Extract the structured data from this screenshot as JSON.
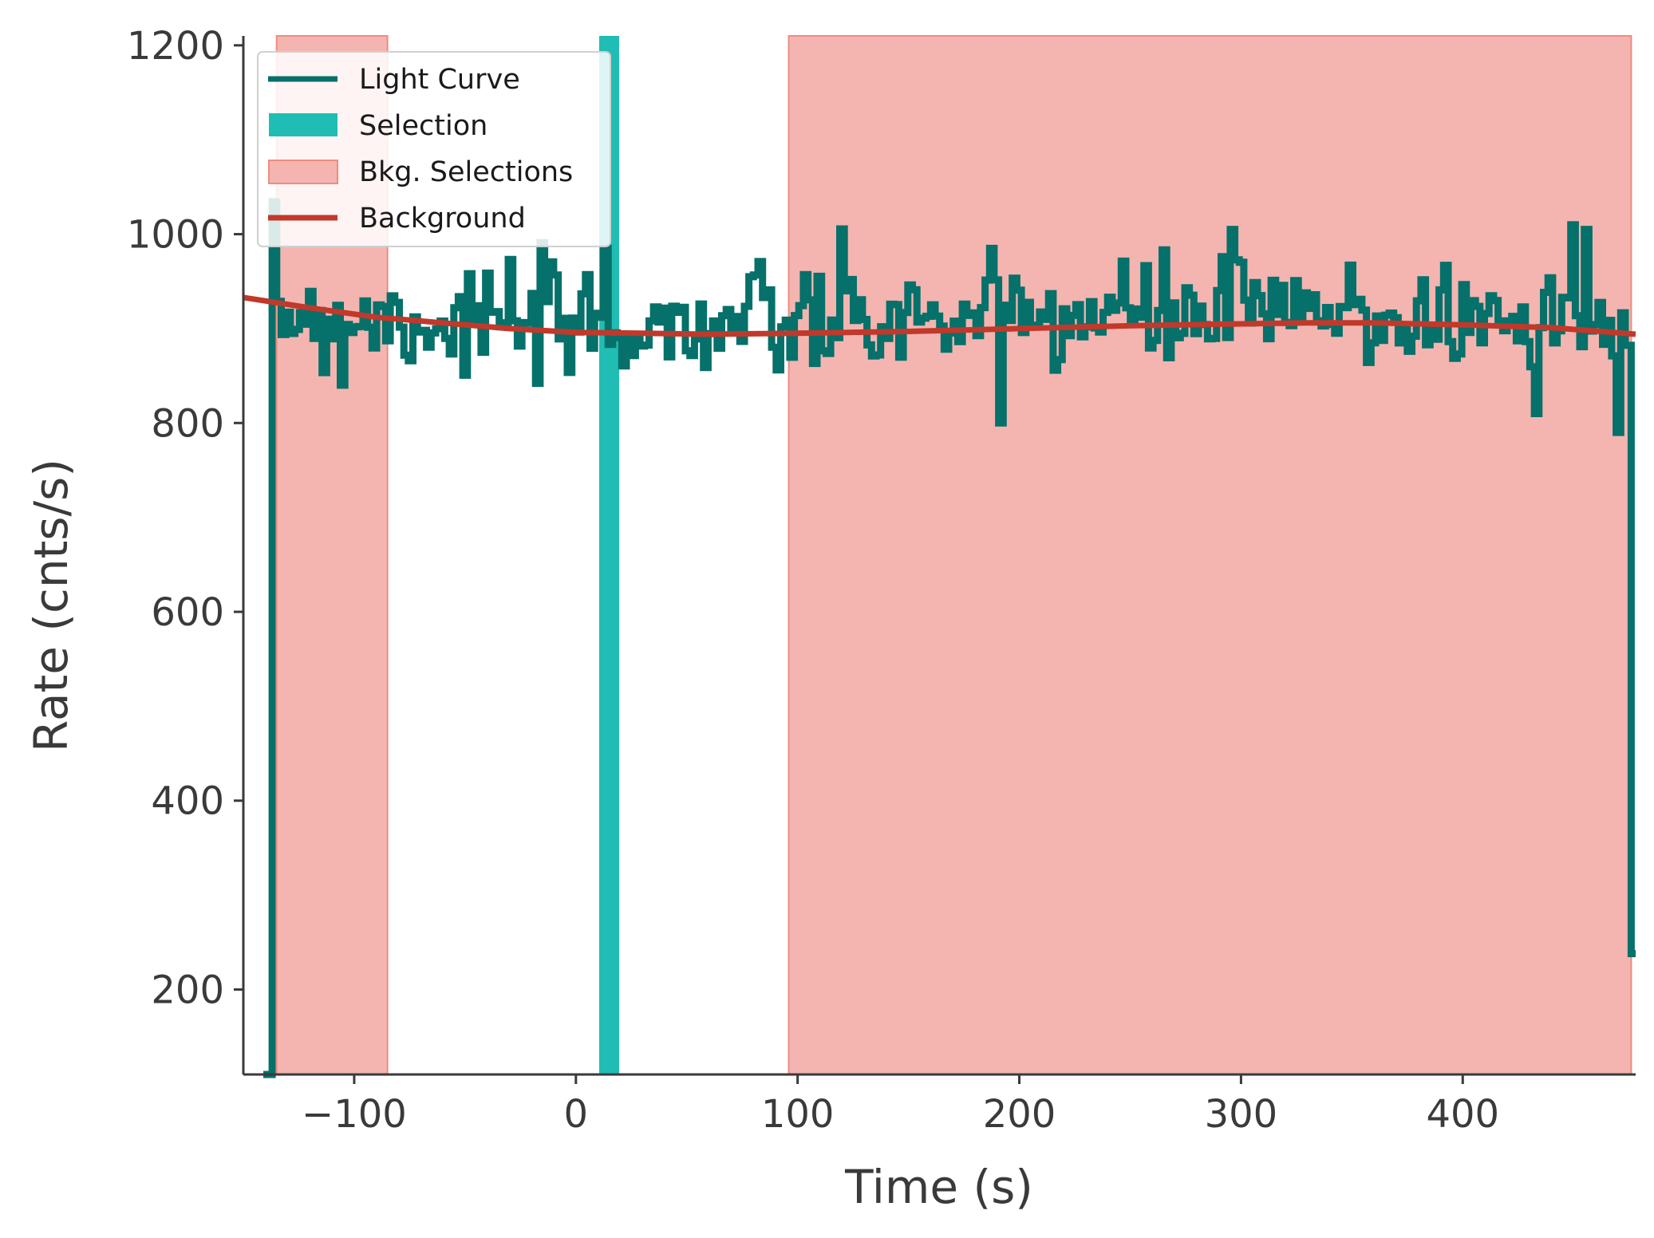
{
  "chart_data": {
    "type": "line",
    "title": "",
    "xlabel": "Time (s)",
    "ylabel": "Rate (cnts/s)",
    "xlim": [
      -150,
      478
    ],
    "ylim": [
      110,
      1210
    ],
    "xticks": [
      -100,
      0,
      100,
      200,
      300,
      400
    ],
    "xtick_labels": [
      "−100",
      "0",
      "100",
      "200",
      "300",
      "400"
    ],
    "yticks": [
      200,
      400,
      600,
      800,
      1000,
      1200
    ],
    "ytick_labels": [
      "200",
      "400",
      "600",
      "800",
      "1000",
      "1200"
    ],
    "grid": false,
    "legend_position": "top-left",
    "legend": [
      {
        "label": "Light Curve",
        "kind": "line",
        "color": "#06706a"
      },
      {
        "label": "Selection",
        "kind": "patch",
        "color": "#20bdb4"
      },
      {
        "label": "Bkg. Selections",
        "kind": "patch",
        "color": "#f4b5b0",
        "edge": "#ef8b82"
      },
      {
        "label": "Background",
        "kind": "line",
        "color": "#c0392b"
      }
    ],
    "light_curve": {
      "name": "Light Curve",
      "color": "#06706a",
      "step": 2.048,
      "t_start": -140,
      "t_end": 476,
      "start_value": 110,
      "end_value": 238,
      "mean_model_knots": {
        "t": [
          -140,
          -80,
          0,
          100,
          200,
          300,
          400,
          476
        ],
        "rate": [
          918,
          910,
          902,
          905,
          912,
          915,
          912,
          905
        ]
      },
      "noise_sigma": 30,
      "seed": 7,
      "notable_peaks": [
        {
          "t": 12,
          "rate": 985
        },
        {
          "t": 296,
          "rate": 1005
        },
        {
          "t": 448,
          "rate": 1010
        },
        {
          "t": 455,
          "rate": 1005
        },
        {
          "t": 190,
          "rate": 800
        },
        {
          "t": 470,
          "rate": 790
        },
        {
          "t": 432,
          "rate": 810
        },
        {
          "t": -106,
          "rate": 840
        }
      ]
    },
    "selection": {
      "name": "Selection",
      "range": [
        10.5,
        19.5
      ],
      "color": "#20bdb4"
    },
    "bkg_selections": {
      "name": "Bkg. Selections",
      "ranges": [
        [
          -135,
          -85
        ],
        [
          96,
          476
        ]
      ],
      "color": "#f4b5b0",
      "edge_color": "#ef8b82"
    },
    "background": {
      "name": "Background",
      "color": "#c0392b",
      "x": [
        -150,
        -120,
        -90,
        -60,
        -30,
        0,
        30,
        60,
        100,
        150,
        200,
        250,
        300,
        330,
        360,
        400,
        440,
        478
      ],
      "y": [
        933,
        922,
        912,
        906,
        900,
        896,
        895,
        894,
        895,
        897,
        900,
        903,
        905,
        906,
        906,
        904,
        901,
        894
      ]
    }
  }
}
